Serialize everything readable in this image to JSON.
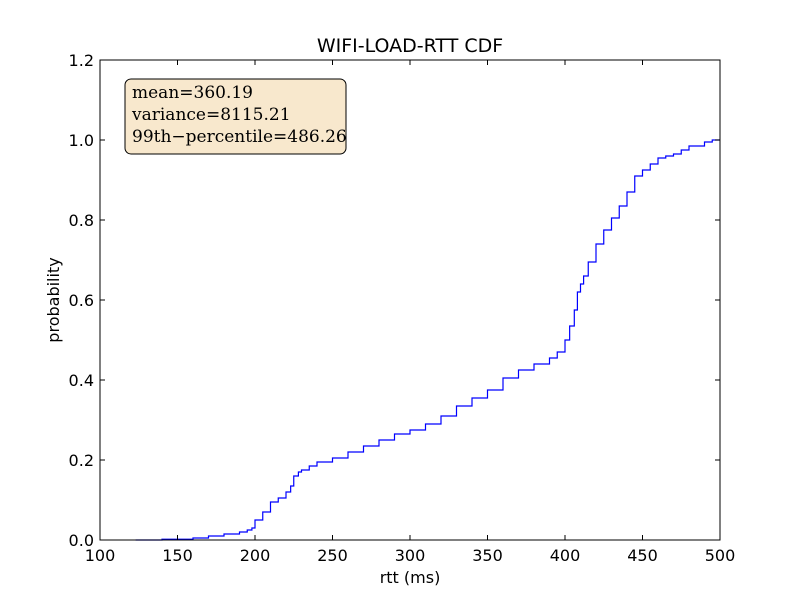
{
  "chart_data": {
    "type": "line",
    "title": "WIFI-LOAD-RTT CDF",
    "xlabel": "rtt (ms)",
    "ylabel": "probability",
    "xlim": [
      100,
      500
    ],
    "ylim": [
      0.0,
      1.2
    ],
    "xticks": [
      100,
      150,
      200,
      250,
      300,
      350,
      400,
      450,
      500
    ],
    "yticks": [
      0.0,
      0.2,
      0.4,
      0.6,
      0.8,
      1.0,
      1.2
    ],
    "xtick_labels": [
      "100",
      "150",
      "200",
      "250",
      "300",
      "350",
      "400",
      "450",
      "500"
    ],
    "ytick_labels": [
      "0.0",
      "0.2",
      "0.4",
      "0.6",
      "0.8",
      "1.0",
      "1.2"
    ],
    "grid": false,
    "series": [
      {
        "color": "#0000ff",
        "x": [
          123,
          140,
          160,
          170,
          180,
          190,
          195,
          198,
          200,
          205,
          210,
          215,
          220,
          223,
          225,
          228,
          230,
          235,
          240,
          250,
          260,
          270,
          280,
          290,
          300,
          310,
          320,
          330,
          340,
          350,
          360,
          370,
          380,
          390,
          395,
          400,
          403,
          406,
          408,
          410,
          412,
          415,
          420,
          425,
          430,
          435,
          440,
          445,
          450,
          455,
          460,
          465,
          470,
          475,
          480,
          490,
          495,
          500
        ],
        "y": [
          0.0,
          0.002,
          0.005,
          0.01,
          0.015,
          0.02,
          0.025,
          0.03,
          0.05,
          0.07,
          0.095,
          0.105,
          0.12,
          0.135,
          0.16,
          0.17,
          0.175,
          0.185,
          0.195,
          0.205,
          0.22,
          0.235,
          0.25,
          0.265,
          0.275,
          0.29,
          0.31,
          0.335,
          0.355,
          0.375,
          0.405,
          0.425,
          0.44,
          0.455,
          0.47,
          0.5,
          0.535,
          0.575,
          0.62,
          0.64,
          0.66,
          0.695,
          0.74,
          0.775,
          0.805,
          0.835,
          0.87,
          0.91,
          0.925,
          0.94,
          0.955,
          0.96,
          0.965,
          0.975,
          0.985,
          0.995,
          1.0,
          1.0
        ]
      }
    ],
    "annotations": [
      "mean=360.19",
      "variance=8115.21",
      "99th−percentile=486.26"
    ]
  }
}
